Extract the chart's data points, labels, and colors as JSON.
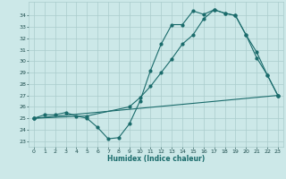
{
  "title": "",
  "xlabel": "Humidex (Indice chaleur)",
  "xlim": [
    -0.5,
    23.5
  ],
  "ylim": [
    22.5,
    35.2
  ],
  "yticks": [
    23,
    24,
    25,
    26,
    27,
    28,
    29,
    30,
    31,
    32,
    33,
    34
  ],
  "xticks": [
    0,
    1,
    2,
    3,
    4,
    5,
    6,
    7,
    8,
    9,
    10,
    11,
    12,
    13,
    14,
    15,
    16,
    17,
    18,
    19,
    20,
    21,
    22,
    23
  ],
  "bg_color": "#cce8e8",
  "grid_color": "#aacccc",
  "line_color": "#1a6b6b",
  "line1_x": [
    0,
    1,
    2,
    3,
    4,
    5,
    6,
    7,
    8,
    9,
    10,
    11,
    12,
    13,
    14,
    15,
    16,
    17,
    18,
    19,
    20,
    21,
    22,
    23
  ],
  "line1_y": [
    25.0,
    25.3,
    25.3,
    25.5,
    25.2,
    25.0,
    24.2,
    23.2,
    23.3,
    24.5,
    26.5,
    29.2,
    31.5,
    33.2,
    33.2,
    34.4,
    34.1,
    34.5,
    34.2,
    34.0,
    32.3,
    30.3,
    28.8,
    27.0
  ],
  "line2_x": [
    0,
    5,
    9,
    10,
    11,
    12,
    13,
    14,
    15,
    16,
    17,
    18,
    19,
    20,
    21,
    22,
    23
  ],
  "line2_y": [
    25.0,
    25.2,
    26.0,
    26.8,
    27.8,
    29.0,
    30.2,
    31.5,
    32.3,
    33.7,
    34.5,
    34.2,
    34.0,
    32.3,
    30.8,
    28.8,
    27.0
  ],
  "line3_x": [
    0,
    23
  ],
  "line3_y": [
    25.0,
    27.0
  ]
}
